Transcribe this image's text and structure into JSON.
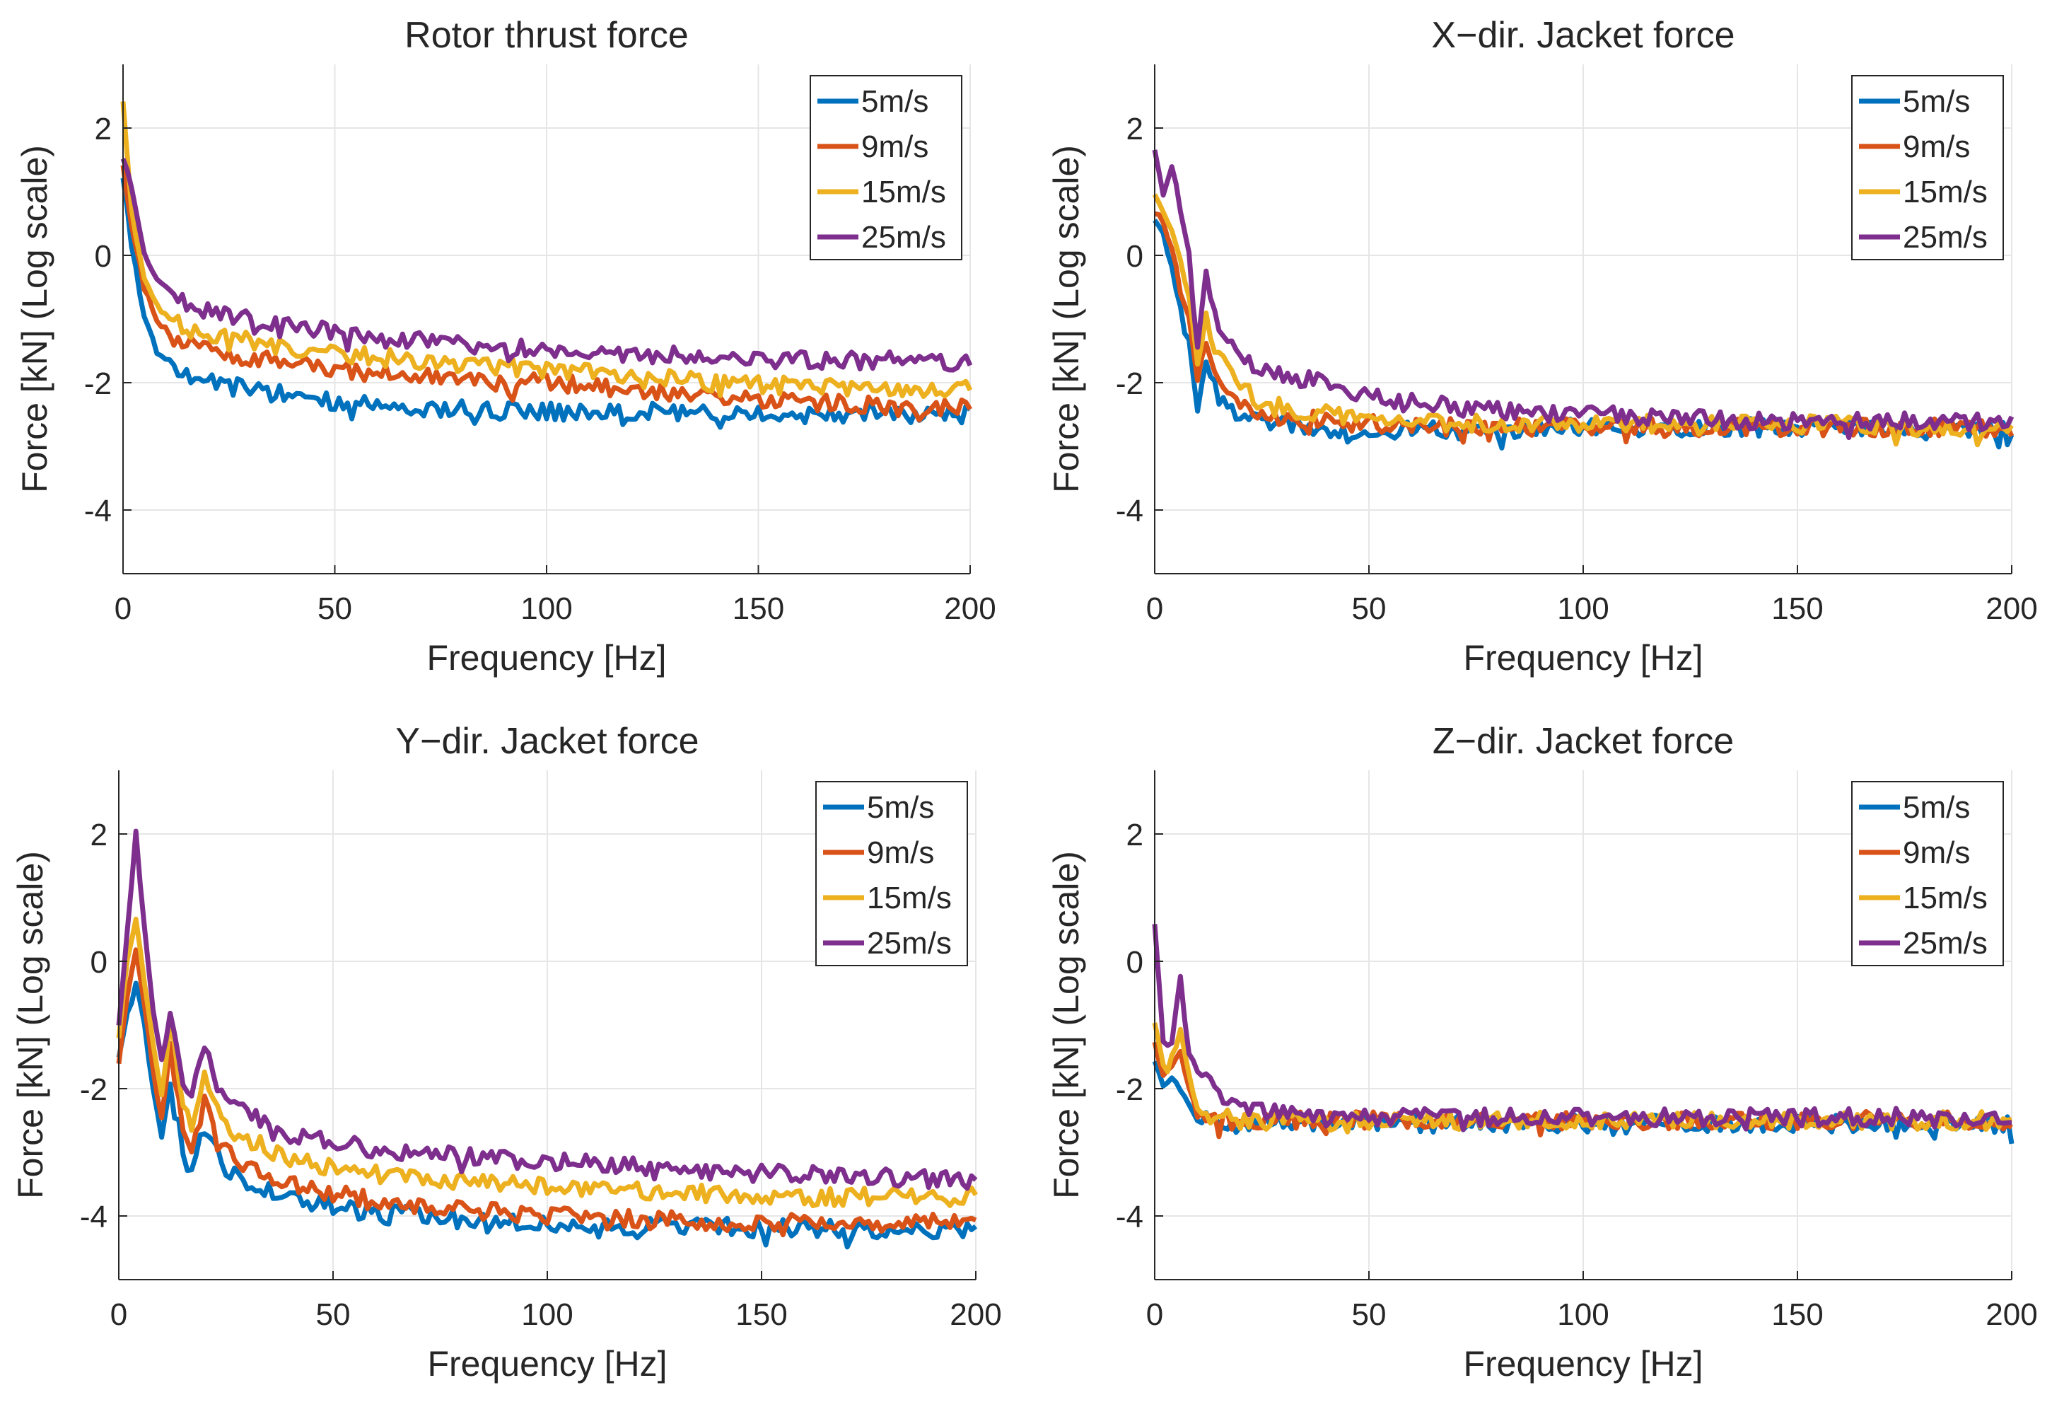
{
  "chart_data": [
    {
      "type": "line",
      "title": "Rotor thrust force",
      "xlabel": "Frequency [Hz]",
      "ylabel": "Force [kN] (Log scale)",
      "xlim": [
        0,
        200
      ],
      "ylim": [
        -5,
        3
      ],
      "xticks": [
        "0",
        "50",
        "100",
        "150",
        "200"
      ],
      "yticks": [
        "2",
        "0",
        "-2",
        "-4"
      ],
      "grid": true,
      "legend": "top-right",
      "series": [
        {
          "name": "5m/s",
          "color": "#0072BD",
          "x": [
            0,
            2,
            5,
            8,
            12,
            15,
            20,
            30,
            40,
            50,
            60,
            70,
            80,
            90,
            100,
            120,
            140,
            160,
            180,
            200
          ],
          "values": [
            1.2,
            0.2,
            -1.0,
            -1.5,
            -1.7,
            -1.9,
            -2.0,
            -2.1,
            -2.2,
            -2.3,
            -2.35,
            -2.4,
            -2.4,
            -2.45,
            -2.45,
            -2.45,
            -2.45,
            -2.5,
            -2.5,
            -2.5
          ]
        },
        {
          "name": "9m/s",
          "color": "#D95319",
          "x": [
            0,
            2,
            5,
            8,
            12,
            15,
            20,
            30,
            40,
            50,
            60,
            70,
            80,
            90,
            100,
            120,
            140,
            160,
            180,
            200
          ],
          "values": [
            1.4,
            0.5,
            -0.5,
            -1.0,
            -1.3,
            -1.4,
            -1.5,
            -1.6,
            -1.7,
            -1.8,
            -1.85,
            -1.9,
            -1.95,
            -2.0,
            -2.0,
            -2.1,
            -2.2,
            -2.3,
            -2.35,
            -2.4
          ]
        },
        {
          "name": "15m/s",
          "color": "#EDB120",
          "x": [
            0,
            2,
            5,
            8,
            12,
            15,
            20,
            30,
            40,
            50,
            60,
            70,
            80,
            90,
            100,
            120,
            140,
            160,
            180,
            200
          ],
          "values": [
            2.4,
            0.7,
            -0.4,
            -0.8,
            -1.0,
            -1.15,
            -1.25,
            -1.35,
            -1.45,
            -1.55,
            -1.6,
            -1.65,
            -1.7,
            -1.75,
            -1.8,
            -1.9,
            -2.0,
            -2.05,
            -2.1,
            -2.1
          ]
        },
        {
          "name": "25m/s",
          "color": "#7E2F8E",
          "x": [
            0,
            2,
            5,
            8,
            12,
            15,
            20,
            30,
            40,
            50,
            60,
            70,
            80,
            90,
            100,
            120,
            140,
            160,
            180,
            200
          ],
          "values": [
            1.5,
            1.1,
            0.0,
            -0.4,
            -0.6,
            -0.75,
            -0.9,
            -1.0,
            -1.1,
            -1.2,
            -1.3,
            -1.35,
            -1.4,
            -1.45,
            -1.5,
            -1.55,
            -1.6,
            -1.65,
            -1.65,
            -1.7
          ]
        }
      ]
    },
    {
      "type": "line",
      "title": "X−dir. Jacket force",
      "xlabel": "Frequency [Hz]",
      "ylabel": "Force [kN] (Log scale)",
      "xlim": [
        0,
        200
      ],
      "ylim": [
        -5,
        3
      ],
      "xticks": [
        "0",
        "50",
        "100",
        "150",
        "200"
      ],
      "yticks": [
        "2",
        "0",
        "-2",
        "-4"
      ],
      "grid": true,
      "legend": "top-right",
      "series": [
        {
          "name": "5m/s",
          "color": "#0072BD",
          "x": [
            0,
            2,
            4,
            6,
            8,
            10,
            12,
            15,
            20,
            25,
            30,
            40,
            50,
            60,
            80,
            100,
            120,
            140,
            160,
            180,
            200
          ],
          "values": [
            0.6,
            0.3,
            -0.2,
            -0.8,
            -1.3,
            -2.4,
            -1.6,
            -2.2,
            -2.5,
            -2.6,
            -2.65,
            -2.7,
            -2.75,
            -2.75,
            -2.75,
            -2.7,
            -2.7,
            -2.7,
            -2.7,
            -2.75,
            -2.75
          ]
        },
        {
          "name": "9m/s",
          "color": "#D95319",
          "x": [
            0,
            2,
            4,
            6,
            8,
            10,
            12,
            15,
            20,
            25,
            30,
            40,
            50,
            60,
            80,
            100,
            120,
            140,
            160,
            180,
            200
          ],
          "values": [
            0.7,
            0.5,
            0.1,
            -0.5,
            -1.0,
            -2.0,
            -1.3,
            -1.9,
            -2.3,
            -2.45,
            -2.55,
            -2.6,
            -2.65,
            -2.7,
            -2.7,
            -2.7,
            -2.7,
            -2.7,
            -2.7,
            -2.7,
            -2.75
          ]
        },
        {
          "name": "15m/s",
          "color": "#EDB120",
          "x": [
            0,
            2,
            4,
            6,
            8,
            10,
            12,
            15,
            20,
            25,
            30,
            40,
            50,
            60,
            80,
            100,
            120,
            140,
            160,
            180,
            200
          ],
          "values": [
            1.0,
            0.7,
            0.4,
            -0.1,
            -0.6,
            -1.7,
            -1.0,
            -1.6,
            -2.1,
            -2.3,
            -2.4,
            -2.5,
            -2.55,
            -2.6,
            -2.65,
            -2.65,
            -2.65,
            -2.65,
            -2.65,
            -2.7,
            -2.7
          ]
        },
        {
          "name": "25m/s",
          "color": "#7E2F8E",
          "x": [
            0,
            2,
            4,
            6,
            8,
            10,
            12,
            15,
            20,
            25,
            30,
            40,
            50,
            60,
            80,
            100,
            120,
            140,
            160,
            180,
            200
          ],
          "values": [
            1.7,
            0.9,
            1.5,
            0.7,
            0.0,
            -1.4,
            -0.2,
            -1.2,
            -1.6,
            -1.8,
            -1.9,
            -2.0,
            -2.2,
            -2.3,
            -2.45,
            -2.5,
            -2.55,
            -2.6,
            -2.6,
            -2.6,
            -2.6
          ]
        }
      ]
    },
    {
      "type": "line",
      "title": "Y−dir. Jacket force",
      "xlabel": "Frequency [Hz]",
      "ylabel": "Force [kN] (Log scale)",
      "xlim": [
        0,
        200
      ],
      "ylim": [
        -5,
        3
      ],
      "xticks": [
        "0",
        "50",
        "100",
        "150",
        "200"
      ],
      "yticks": [
        "2",
        "0",
        "-2",
        "-4"
      ],
      "grid": true,
      "legend": "top-right",
      "series": [
        {
          "name": "5m/s",
          "color": "#0072BD",
          "x": [
            0,
            2,
            4,
            6,
            8,
            10,
            12,
            15,
            17,
            20,
            25,
            30,
            40,
            50,
            60,
            80,
            100,
            120,
            140,
            160,
            180,
            200
          ],
          "values": [
            -1.5,
            -0.8,
            -0.3,
            -1.0,
            -2.0,
            -2.8,
            -1.8,
            -3.0,
            -3.3,
            -2.6,
            -3.3,
            -3.5,
            -3.7,
            -3.85,
            -3.95,
            -4.05,
            -4.1,
            -4.15,
            -4.15,
            -4.2,
            -4.2,
            -4.2
          ]
        },
        {
          "name": "9m/s",
          "color": "#D95319",
          "x": [
            0,
            2,
            4,
            6,
            8,
            10,
            12,
            15,
            17,
            20,
            25,
            30,
            40,
            50,
            60,
            80,
            100,
            120,
            140,
            160,
            180,
            200
          ],
          "values": [
            -1.6,
            -0.5,
            0.2,
            -0.7,
            -1.7,
            -2.5,
            -1.4,
            -2.7,
            -3.0,
            -2.2,
            -3.0,
            -3.2,
            -3.5,
            -3.65,
            -3.75,
            -3.9,
            -4.0,
            -4.05,
            -4.1,
            -4.1,
            -4.1,
            -4.1
          ]
        },
        {
          "name": "15m/s",
          "color": "#EDB120",
          "x": [
            0,
            2,
            4,
            6,
            8,
            10,
            12,
            15,
            17,
            20,
            25,
            30,
            40,
            50,
            60,
            80,
            100,
            120,
            140,
            160,
            180,
            200
          ],
          "values": [
            -1.2,
            0.0,
            0.7,
            -0.3,
            -1.3,
            -2.1,
            -1.0,
            -2.3,
            -2.6,
            -1.8,
            -2.6,
            -2.8,
            -3.1,
            -3.25,
            -3.35,
            -3.45,
            -3.55,
            -3.6,
            -3.65,
            -3.7,
            -3.7,
            -3.7
          ]
        },
        {
          "name": "25m/s",
          "color": "#7E2F8E",
          "x": [
            0,
            2,
            4,
            6,
            8,
            10,
            12,
            15,
            17,
            20,
            25,
            30,
            40,
            50,
            60,
            80,
            100,
            120,
            140,
            160,
            180,
            200
          ],
          "values": [
            -1.0,
            0.5,
            2.0,
            0.5,
            -0.8,
            -1.5,
            -0.7,
            -1.9,
            -2.1,
            -1.4,
            -2.2,
            -2.4,
            -2.7,
            -2.85,
            -2.95,
            -3.05,
            -3.15,
            -3.2,
            -3.3,
            -3.35,
            -3.4,
            -3.45
          ]
        }
      ]
    },
    {
      "type": "line",
      "title": "Z−dir. Jacket force",
      "xlabel": "Frequency [Hz]",
      "ylabel": "Force [kN] (Log scale)",
      "xlim": [
        0,
        200
      ],
      "ylim": [
        -5,
        3
      ],
      "xticks": [
        "0",
        "50",
        "100",
        "150",
        "200"
      ],
      "yticks": [
        "2",
        "0",
        "-2",
        "-4"
      ],
      "grid": true,
      "legend": "top-right",
      "series": [
        {
          "name": "5m/s",
          "color": "#0072BD",
          "x": [
            0,
            2,
            4,
            6,
            8,
            10,
            12,
            15,
            20,
            30,
            40,
            50,
            60,
            80,
            100,
            120,
            140,
            160,
            180,
            200
          ],
          "values": [
            -1.6,
            -2.0,
            -1.8,
            -2.0,
            -2.3,
            -2.5,
            -2.5,
            -2.55,
            -2.55,
            -2.55,
            -2.55,
            -2.55,
            -2.55,
            -2.55,
            -2.55,
            -2.55,
            -2.55,
            -2.55,
            -2.55,
            -2.55
          ]
        },
        {
          "name": "9m/s",
          "color": "#D95319",
          "x": [
            0,
            2,
            4,
            6,
            8,
            10,
            12,
            15,
            20,
            30,
            40,
            50,
            60,
            80,
            100,
            120,
            140,
            160,
            180,
            200
          ],
          "values": [
            -1.3,
            -1.8,
            -1.6,
            -1.4,
            -2.0,
            -2.4,
            -2.45,
            -2.5,
            -2.5,
            -2.5,
            -2.5,
            -2.5,
            -2.5,
            -2.5,
            -2.5,
            -2.5,
            -2.5,
            -2.5,
            -2.5,
            -2.5
          ]
        },
        {
          "name": "15m/s",
          "color": "#EDB120",
          "x": [
            0,
            2,
            4,
            6,
            8,
            10,
            12,
            15,
            20,
            30,
            40,
            50,
            60,
            80,
            100,
            120,
            140,
            160,
            180,
            200
          ],
          "values": [
            -1.0,
            -1.6,
            -1.5,
            -1.1,
            -1.8,
            -2.3,
            -2.4,
            -2.45,
            -2.5,
            -2.5,
            -2.5,
            -2.5,
            -2.5,
            -2.5,
            -2.5,
            -2.5,
            -2.5,
            -2.5,
            -2.5,
            -2.5
          ]
        },
        {
          "name": "25m/s",
          "color": "#7E2F8E",
          "x": [
            0,
            2,
            4,
            6,
            8,
            10,
            12,
            15,
            20,
            30,
            40,
            50,
            60,
            80,
            100,
            120,
            140,
            160,
            180,
            200
          ],
          "values": [
            0.55,
            -1.3,
            -1.3,
            -0.25,
            -1.5,
            -1.7,
            -1.9,
            -2.1,
            -2.3,
            -2.4,
            -2.45,
            -2.45,
            -2.45,
            -2.45,
            -2.45,
            -2.45,
            -2.45,
            -2.45,
            -2.45,
            -2.5
          ]
        }
      ]
    }
  ]
}
